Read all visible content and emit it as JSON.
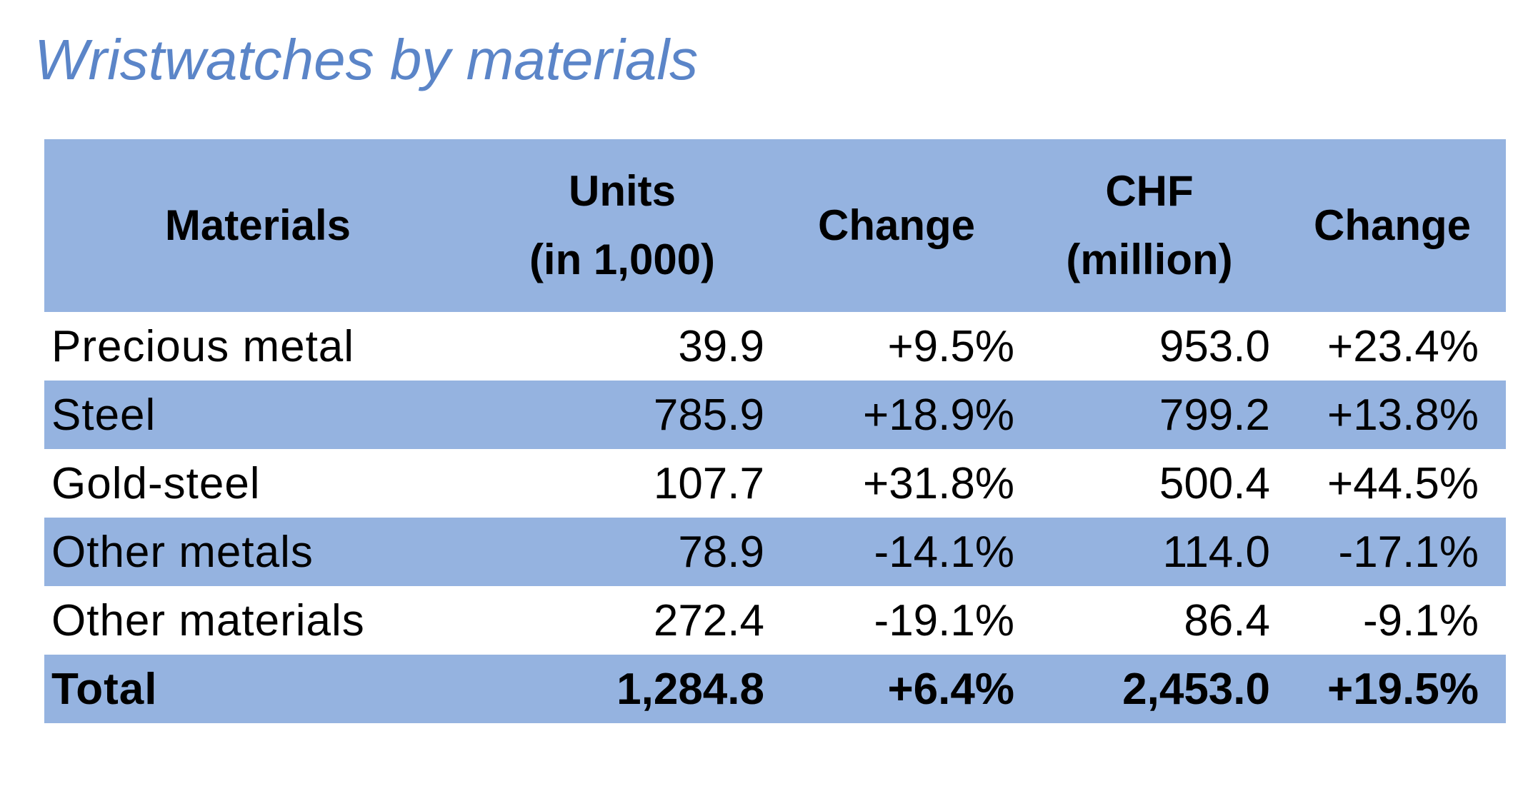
{
  "title": "Wristwatches by materials",
  "table": {
    "headers": [
      [
        "Materials"
      ],
      [
        "Units",
        "(in 1,000)"
      ],
      [
        "Change"
      ],
      [
        "CHF",
        "(million)"
      ],
      [
        "Change"
      ]
    ],
    "rows": [
      {
        "material": "Precious metal",
        "units": "39.9",
        "units_change": "+9.5%",
        "chf": "953.0",
        "chf_change": "+23.4%"
      },
      {
        "material": "Steel",
        "units": "785.9",
        "units_change": "+18.9%",
        "chf": "799.2",
        "chf_change": "+13.8%"
      },
      {
        "material": "Gold-steel",
        "units": "107.7",
        "units_change": "+31.8%",
        "chf": "500.4",
        "chf_change": "+44.5%"
      },
      {
        "material": "Other metals",
        "units": "78.9",
        "units_change": "-14.1%",
        "chf": "114.0",
        "chf_change": "-17.1%"
      },
      {
        "material": "Other materials",
        "units": "272.4",
        "units_change": "-19.1%",
        "chf": "86.4",
        "chf_change": "-9.1%"
      }
    ],
    "total": {
      "material": "Total",
      "units": "1,284.8",
      "units_change": "+6.4%",
      "chf": "2,453.0",
      "chf_change": "+19.5%"
    }
  },
  "colors": {
    "title": "#5b85c8",
    "header_fill": "#95b3e0",
    "band_fill": "#95b3e0"
  }
}
